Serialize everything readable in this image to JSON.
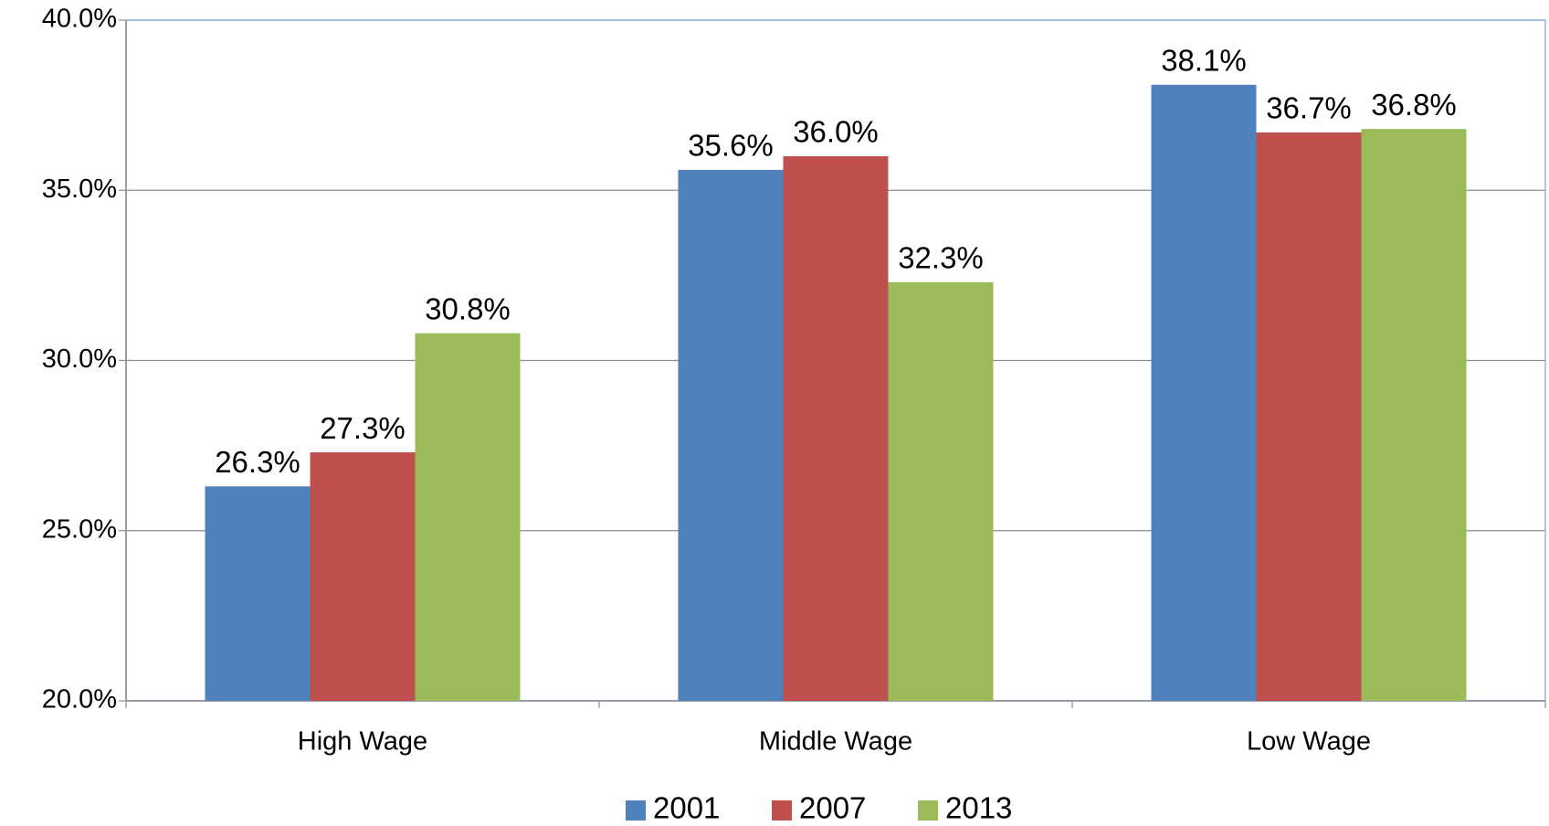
{
  "chart_data": {
    "type": "bar",
    "categories": [
      "High Wage",
      "Middle Wage",
      "Low Wage"
    ],
    "series": [
      {
        "name": "2001",
        "color": "#4f81bd",
        "values": [
          26.3,
          35.6,
          38.1
        ],
        "value_labels": [
          "26.3%",
          "35.6%",
          "38.1%"
        ]
      },
      {
        "name": "2007",
        "color": "#c0504d",
        "values": [
          27.3,
          36.0,
          36.7
        ],
        "value_labels": [
          "27.3%",
          "36.0%",
          "36.7%"
        ]
      },
      {
        "name": "2013",
        "color": "#9bbb59",
        "values": [
          30.8,
          32.3,
          36.8
        ],
        "value_labels": [
          "30.8%",
          "32.3%",
          "36.8%"
        ]
      }
    ],
    "ylim": [
      20,
      40
    ],
    "yticks": [
      {
        "value": 20,
        "label": "20.0%"
      },
      {
        "value": 25,
        "label": "25.0%"
      },
      {
        "value": 30,
        "label": "30.0%"
      },
      {
        "value": 35,
        "label": "35.0%"
      },
      {
        "value": 40,
        "label": "40.0%"
      }
    ],
    "grid": true,
    "legend": "bottom"
  }
}
